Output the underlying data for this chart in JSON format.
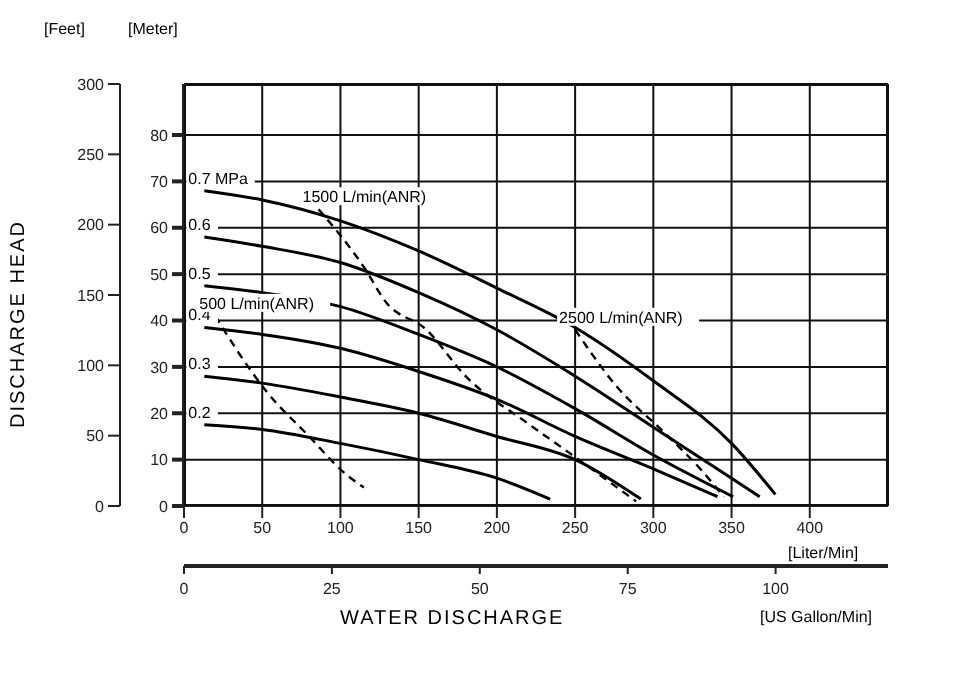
{
  "chart_data": {
    "type": "line",
    "xlabel": "[Liter/Min]",
    "x2label": "[US Gallon/Min]",
    "ylabel": "[Meter]",
    "y2label": "[Feet]",
    "annotations": [
      "DISCHARGE HEAD",
      "WATER DISCHARGE"
    ],
    "xlim": [
      0,
      450
    ],
    "xticks": [
      0,
      50,
      100,
      150,
      200,
      250,
      300,
      350,
      400
    ],
    "x2lim": [
      0,
      119
    ],
    "x2ticks": [
      0,
      25,
      50,
      75,
      100
    ],
    "ylim": [
      0,
      91
    ],
    "yticks": [
      0,
      10,
      20,
      30,
      40,
      50,
      60,
      70,
      80
    ],
    "y2lim": [
      0,
      300
    ],
    "y2ticks": [
      0,
      50,
      100,
      150,
      200,
      250,
      300
    ],
    "grid": true,
    "marker": "none",
    "series": [
      {
        "name": "0.7 MPa",
        "color": "#000000",
        "line_style": "solid",
        "x": [
          13,
          50,
          100,
          150,
          200,
          250,
          300,
          350,
          378
        ],
        "values": [
          68,
          66,
          61.5,
          55,
          47,
          38.5,
          27,
          13.5,
          2.5
        ]
      },
      {
        "name": "0.6",
        "color": "#000000",
        "line_style": "solid",
        "x": [
          13,
          50,
          100,
          150,
          200,
          250,
          300,
          350,
          368
        ],
        "values": [
          58,
          56,
          52.5,
          46,
          38,
          28,
          17,
          6,
          2
        ]
      },
      {
        "name": "0.5",
        "color": "#000000",
        "line_style": "solid",
        "x": [
          13,
          50,
          100,
          150,
          200,
          250,
          300,
          351
        ],
        "values": [
          47.5,
          46,
          43,
          37,
          30,
          21,
          11,
          2
        ]
      },
      {
        "name": "0.4",
        "color": "#000000",
        "line_style": "solid",
        "x": [
          13,
          50,
          100,
          150,
          200,
          250,
          300,
          341
        ],
        "values": [
          38.5,
          37,
          34,
          29,
          23,
          15,
          8,
          2
        ]
      },
      {
        "name": "0.3",
        "color": "#000000",
        "line_style": "solid",
        "x": [
          13,
          50,
          100,
          150,
          200,
          250,
          292
        ],
        "values": [
          28,
          26.5,
          23.5,
          20,
          15,
          10,
          1.5
        ]
      },
      {
        "name": "0.2",
        "color": "#000000",
        "line_style": "solid",
        "x": [
          13,
          50,
          100,
          150,
          200,
          234
        ],
        "values": [
          17.5,
          16.5,
          13.5,
          10,
          6,
          1.5
        ]
      },
      {
        "name": "500 L/min(ANR)",
        "color": "#000000",
        "line_style": "dashed",
        "x": [
          20,
          35,
          52,
          80,
          103,
          115
        ],
        "values": [
          41,
          33,
          25,
          15,
          7,
          4
        ]
      },
      {
        "name": "1500 L/min(ANR)",
        "color": "#000000",
        "line_style": "dashed",
        "x": [
          86,
          115,
          129,
          155,
          180,
          219,
          244,
          289
        ],
        "values": [
          64,
          51.5,
          44,
          38,
          28,
          18,
          12,
          1
        ]
      },
      {
        "name": "2500 L/min(ANR)",
        "color": "#000000",
        "line_style": "dashed",
        "x": [
          250,
          276,
          308,
          330,
          345
        ],
        "values": [
          38,
          26,
          15.5,
          8,
          2
        ]
      }
    ]
  }
}
